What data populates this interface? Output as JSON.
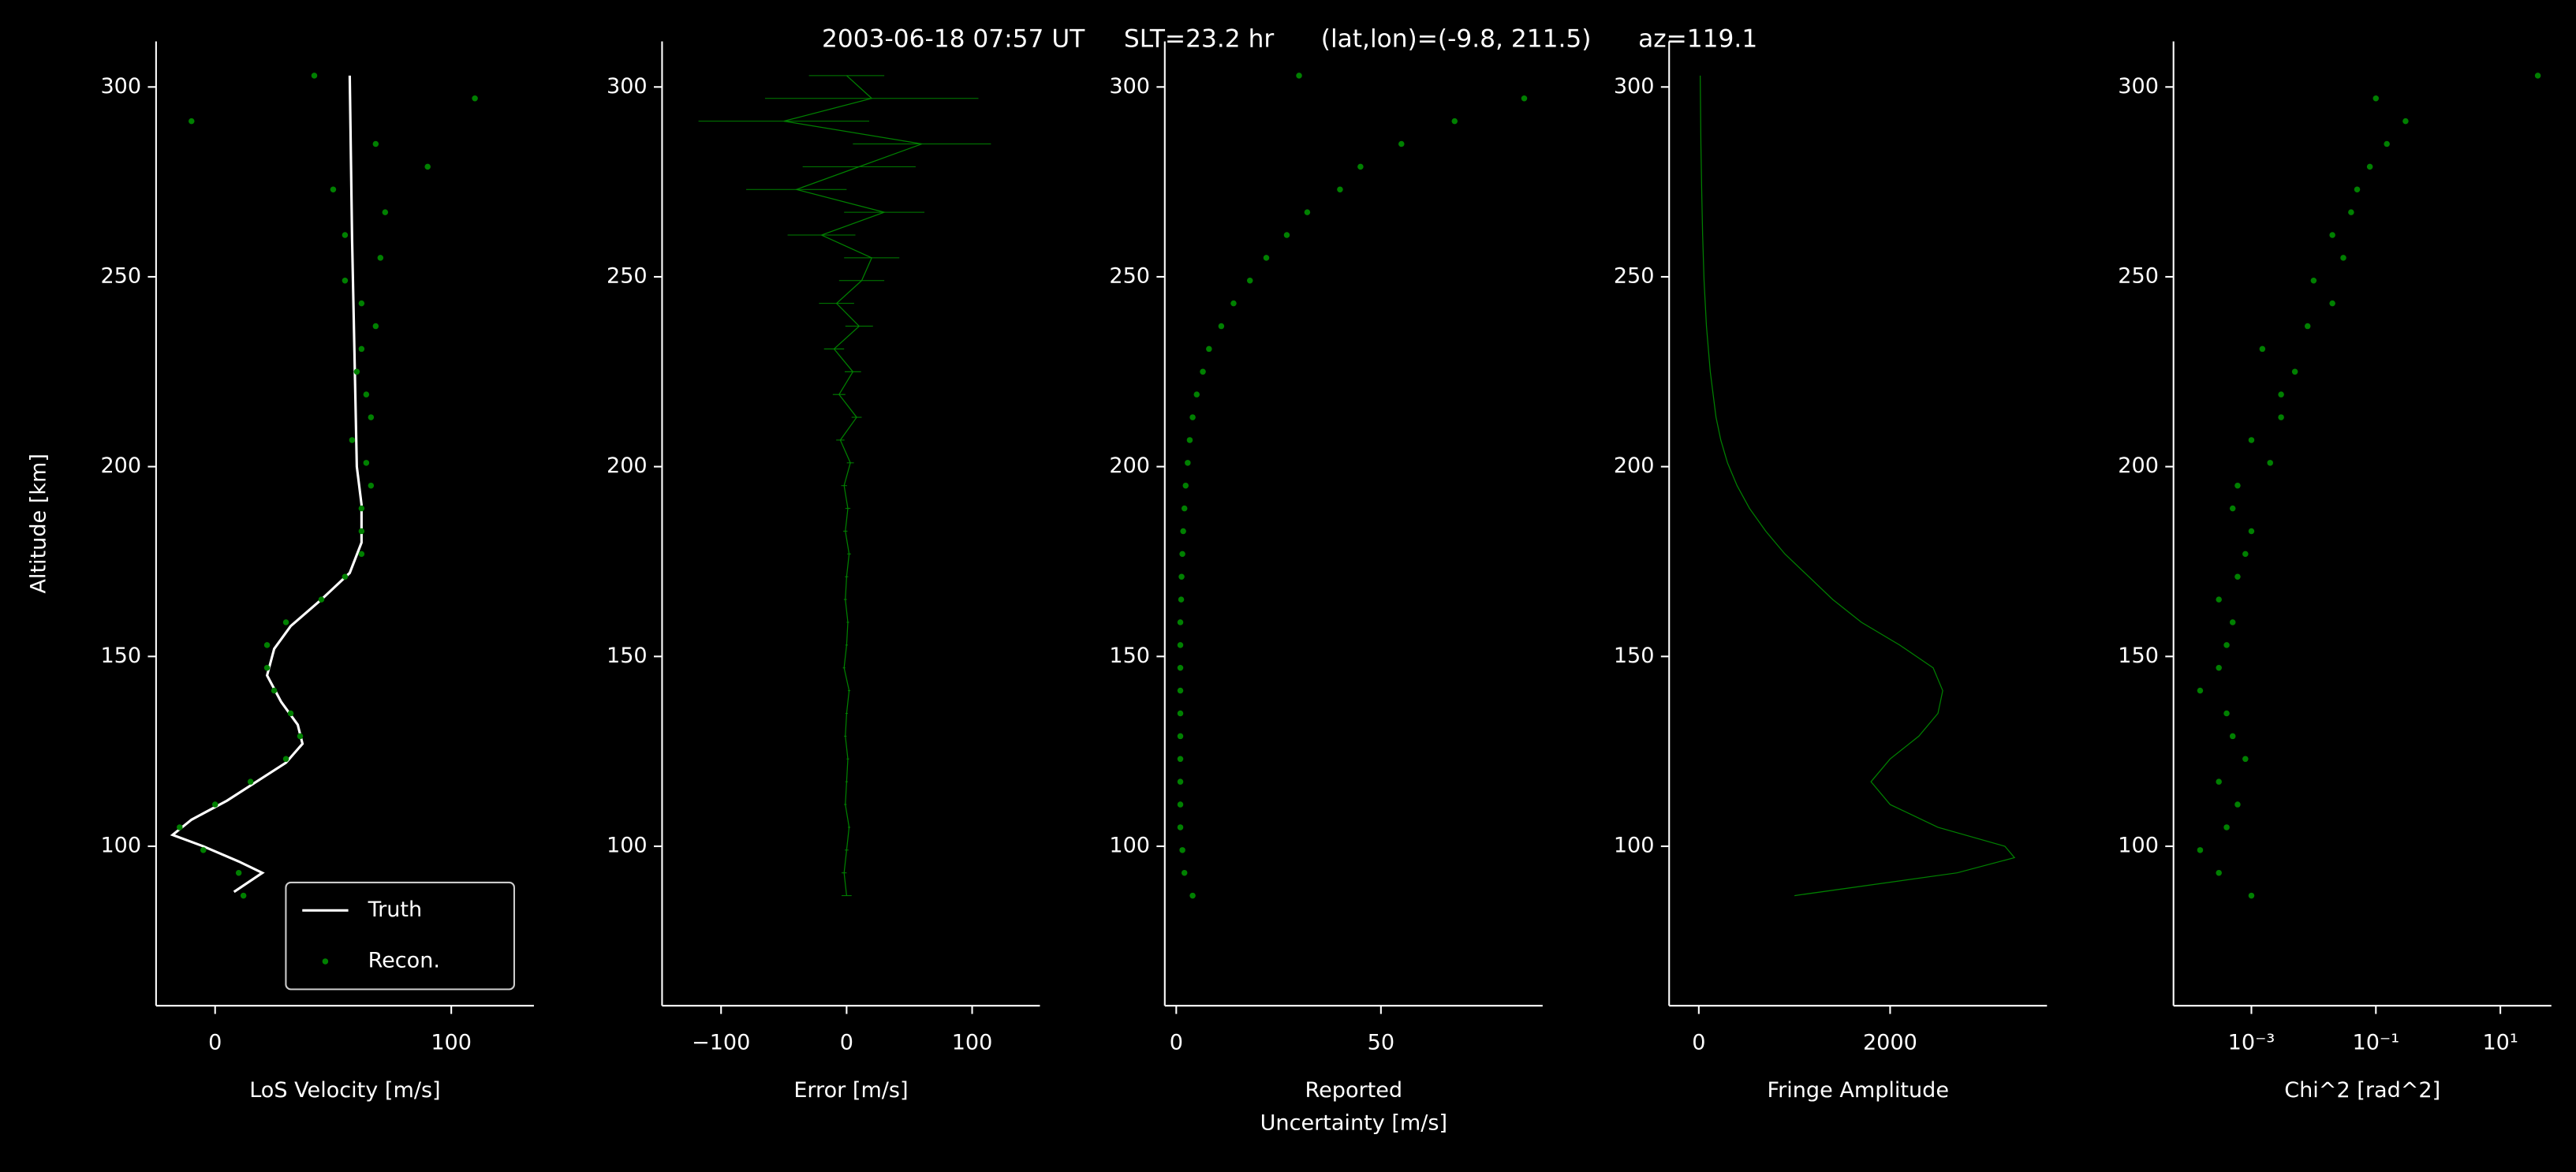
{
  "chart_data": [
    {
      "type": "line",
      "title": "2003-06-18 07:57 UT     SLT=23.2 hr      (lat,lon)=(-9.8, 211.5)      az=119.1",
      "xlabel": "LoS Velocity [m/s]",
      "ylabel": "Altitude [km]",
      "xlim": [
        -25,
        135
      ],
      "xticks": [
        0,
        100
      ],
      "ylim": [
        58,
        312
      ],
      "yticks": [
        100,
        150,
        200,
        250,
        300
      ],
      "legend": "lower right",
      "series": [
        {
          "name": "Truth",
          "type": "line",
          "color": "#ffffff",
          "x": [
            8,
            20,
            10,
            -5,
            -18,
            -10,
            5,
            20,
            30,
            37,
            35,
            28,
            22,
            25,
            32,
            45,
            57,
            62,
            62,
            60,
            59,
            58,
            57
          ],
          "y": [
            88,
            93,
            96,
            100,
            103,
            107,
            112,
            118,
            122,
            127,
            132,
            138,
            145,
            152,
            158,
            165,
            172,
            180,
            190,
            200,
            230,
            260,
            303
          ]
        },
        {
          "name": "Recon.",
          "type": "scatter",
          "color": "#008000",
          "x": [
            12,
            10,
            -5,
            -15,
            0,
            15,
            30,
            36,
            32,
            25,
            22,
            22,
            30,
            45,
            55,
            62,
            62,
            62,
            66,
            64,
            58,
            66,
            64,
            60,
            62,
            68,
            62,
            55,
            70,
            55,
            72,
            50,
            90,
            68,
            -10,
            110,
            42
          ],
          "y": [
            87,
            93,
            99,
            105,
            111,
            117,
            123,
            129,
            135,
            141,
            147,
            153,
            159,
            165,
            171,
            177,
            183,
            189,
            195,
            201,
            207,
            213,
            219,
            225,
            231,
            237,
            243,
            249,
            255,
            261,
            267,
            273,
            279,
            285,
            291,
            297,
            303
          ]
        }
      ]
    },
    {
      "type": "line",
      "xlabel": "Error [m/s]",
      "xlim": [
        -147,
        154
      ],
      "xticks": [
        {
          "value": -100,
          "label": "−100"
        },
        0,
        100
      ],
      "ylim": [
        58,
        312
      ],
      "yticks": [
        100,
        150,
        200,
        250,
        300
      ],
      "series": [
        {
          "type": "line",
          "color": "#008000",
          "x": [
            0,
            -2,
            0,
            2,
            -1,
            0,
            1,
            -1,
            0,
            2,
            -2,
            0,
            1,
            -1,
            0,
            2,
            -1,
            1,
            -2,
            3,
            -5,
            8,
            -6,
            5,
            -10,
            10,
            -8,
            12,
            20,
            -20,
            30,
            -40,
            10,
            60,
            -50,
            20,
            0
          ],
          "errors": [
            4,
            2,
            1.5,
            1,
            1,
            1,
            1,
            1,
            1,
            1,
            1,
            1,
            1,
            1.2,
            1.3,
            1.5,
            1.7,
            2,
            2.3,
            2.8,
            3.3,
            4,
            5,
            6.5,
            8,
            11,
            14,
            18,
            22,
            27,
            32,
            40,
            45,
            55,
            68,
            85,
            30
          ],
          "y": [
            87,
            93,
            99,
            105,
            111,
            117,
            123,
            129,
            135,
            141,
            147,
            153,
            159,
            165,
            171,
            177,
            183,
            189,
            195,
            201,
            207,
            213,
            219,
            225,
            231,
            237,
            243,
            249,
            255,
            261,
            267,
            273,
            279,
            285,
            291,
            297,
            303
          ]
        }
      ]
    },
    {
      "type": "scatter",
      "xlabel": [
        "Reported",
        "Uncertainty [m/s]"
      ],
      "xlim": [
        -2.8,
        89.5
      ],
      "xticks": [
        0,
        50
      ],
      "ylim": [
        58,
        312
      ],
      "yticks": [
        100,
        150,
        200,
        250,
        300
      ],
      "series": [
        {
          "type": "scatter",
          "color": "#008000",
          "x": [
            4,
            2,
            1.5,
            1,
            1,
            1,
            1,
            1,
            1,
            1,
            1,
            1,
            1,
            1.2,
            1.3,
            1.5,
            1.7,
            2,
            2.3,
            2.8,
            3.3,
            4,
            5,
            6.5,
            8,
            11,
            14,
            18,
            22,
            27,
            32,
            40,
            45,
            55,
            68,
            85,
            30
          ],
          "y": [
            87,
            93,
            99,
            105,
            111,
            117,
            123,
            129,
            135,
            141,
            147,
            153,
            159,
            165,
            171,
            177,
            183,
            189,
            195,
            201,
            207,
            213,
            219,
            225,
            231,
            237,
            243,
            249,
            255,
            261,
            267,
            273,
            279,
            285,
            291,
            297,
            303
          ]
        }
      ]
    },
    {
      "type": "line",
      "xlabel": "Fringe Amplitude",
      "xlim": [
        -310,
        3640
      ],
      "xticks": [
        0,
        2000
      ],
      "ylim": [
        58,
        312
      ],
      "yticks": [
        100,
        150,
        200,
        250,
        300
      ],
      "series": [
        {
          "type": "line",
          "color": "#008000",
          "x": [
            1000,
            2700,
            3300,
            3200,
            2500,
            2000,
            1800,
            2000,
            2300,
            2500,
            2550,
            2450,
            2100,
            1700,
            1400,
            1150,
            900,
            700,
            530,
            400,
            300,
            230,
            180,
            120,
            80,
            55,
            40,
            30,
            22,
            15
          ],
          "y": [
            87,
            93,
            97,
            100,
            105,
            111,
            117,
            123,
            129,
            135,
            141,
            147,
            153,
            159,
            165,
            171,
            177,
            183,
            189,
            195,
            201,
            207,
            213,
            225,
            237,
            249,
            261,
            273,
            285,
            303
          ]
        }
      ]
    },
    {
      "type": "scatter",
      "xlabel": "Chi^2 [rad^2]",
      "xscale": "log",
      "xlim": [
        5.6e-05,
        66
      ],
      "xticks": [
        {
          "value": 0.001,
          "label": "10⁻³"
        },
        {
          "value": 0.1,
          "label": "10⁻¹"
        },
        {
          "value": 10,
          "label": "10¹"
        }
      ],
      "ylim": [
        58,
        312
      ],
      "yticks": [
        100,
        150,
        200,
        250,
        300
      ],
      "series": [
        {
          "type": "scatter",
          "color": "#008000",
          "x": [
            0.001,
            0.0003,
            0.00015,
            0.0004,
            0.0006,
            0.0003,
            0.0008,
            0.0005,
            0.0004,
            0.00015,
            0.0003,
            0.0004,
            0.0005,
            0.0003,
            0.0006,
            0.0008,
            0.001,
            0.0005,
            0.0006,
            0.002,
            0.001,
            0.003,
            0.003,
            0.005,
            0.0015,
            0.008,
            0.02,
            0.01,
            0.03,
            0.02,
            0.04,
            0.05,
            0.08,
            0.15,
            0.3,
            0.1,
            40
          ],
          "y": [
            87,
            93,
            99,
            105,
            111,
            117,
            123,
            129,
            135,
            141,
            147,
            153,
            159,
            165,
            171,
            177,
            183,
            189,
            195,
            201,
            207,
            213,
            219,
            225,
            231,
            237,
            243,
            249,
            255,
            261,
            267,
            273,
            279,
            285,
            291,
            297,
            303
          ]
        }
      ]
    }
  ]
}
